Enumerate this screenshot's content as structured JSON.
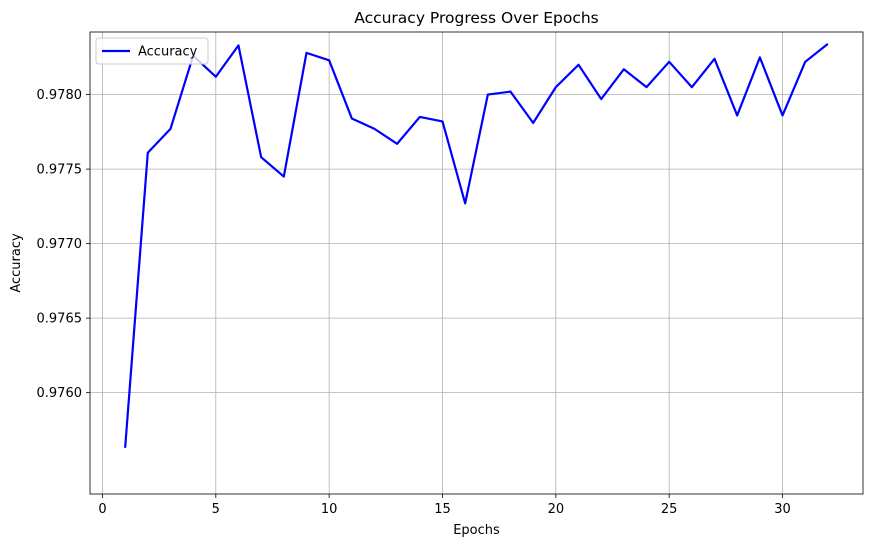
{
  "chart_data": {
    "type": "line",
    "title": "Accuracy Progress Over Epochs",
    "xlabel": "Epochs",
    "ylabel": "Accuracy",
    "xlim": [
      -0.55,
      33.55
    ],
    "ylim": [
      0.97532,
      0.97842
    ],
    "xticks": [
      0,
      5,
      10,
      15,
      20,
      25,
      30
    ],
    "xtick_labels": [
      "0",
      "5",
      "10",
      "15",
      "20",
      "25",
      "30"
    ],
    "yticks": [
      0.976,
      0.9765,
      0.977,
      0.9775,
      0.978
    ],
    "ytick_labels": [
      "0.9760",
      "0.9765",
      "0.9770",
      "0.9775",
      "0.9780"
    ],
    "grid": true,
    "legend_position": "top-left",
    "series": [
      {
        "name": "Accuracy",
        "color": "#0000ff",
        "x": [
          1,
          2,
          3,
          4,
          5,
          6,
          7,
          8,
          9,
          10,
          11,
          12,
          13,
          14,
          15,
          16,
          17,
          18,
          19,
          20,
          21,
          22,
          23,
          24,
          25,
          26,
          27,
          28,
          29,
          30,
          31,
          32
        ],
        "values": [
          0.97563,
          0.97761,
          0.97777,
          0.97826,
          0.97812,
          0.97833,
          0.97758,
          0.97745,
          0.97828,
          0.97823,
          0.97784,
          0.97777,
          0.97767,
          0.97785,
          0.97782,
          0.97727,
          0.978,
          0.97802,
          0.97781,
          0.97805,
          0.9782,
          0.97797,
          0.97817,
          0.97805,
          0.97822,
          0.97805,
          0.97824,
          0.97786,
          0.97825,
          0.97786,
          0.97822,
          0.97834
        ]
      }
    ]
  }
}
